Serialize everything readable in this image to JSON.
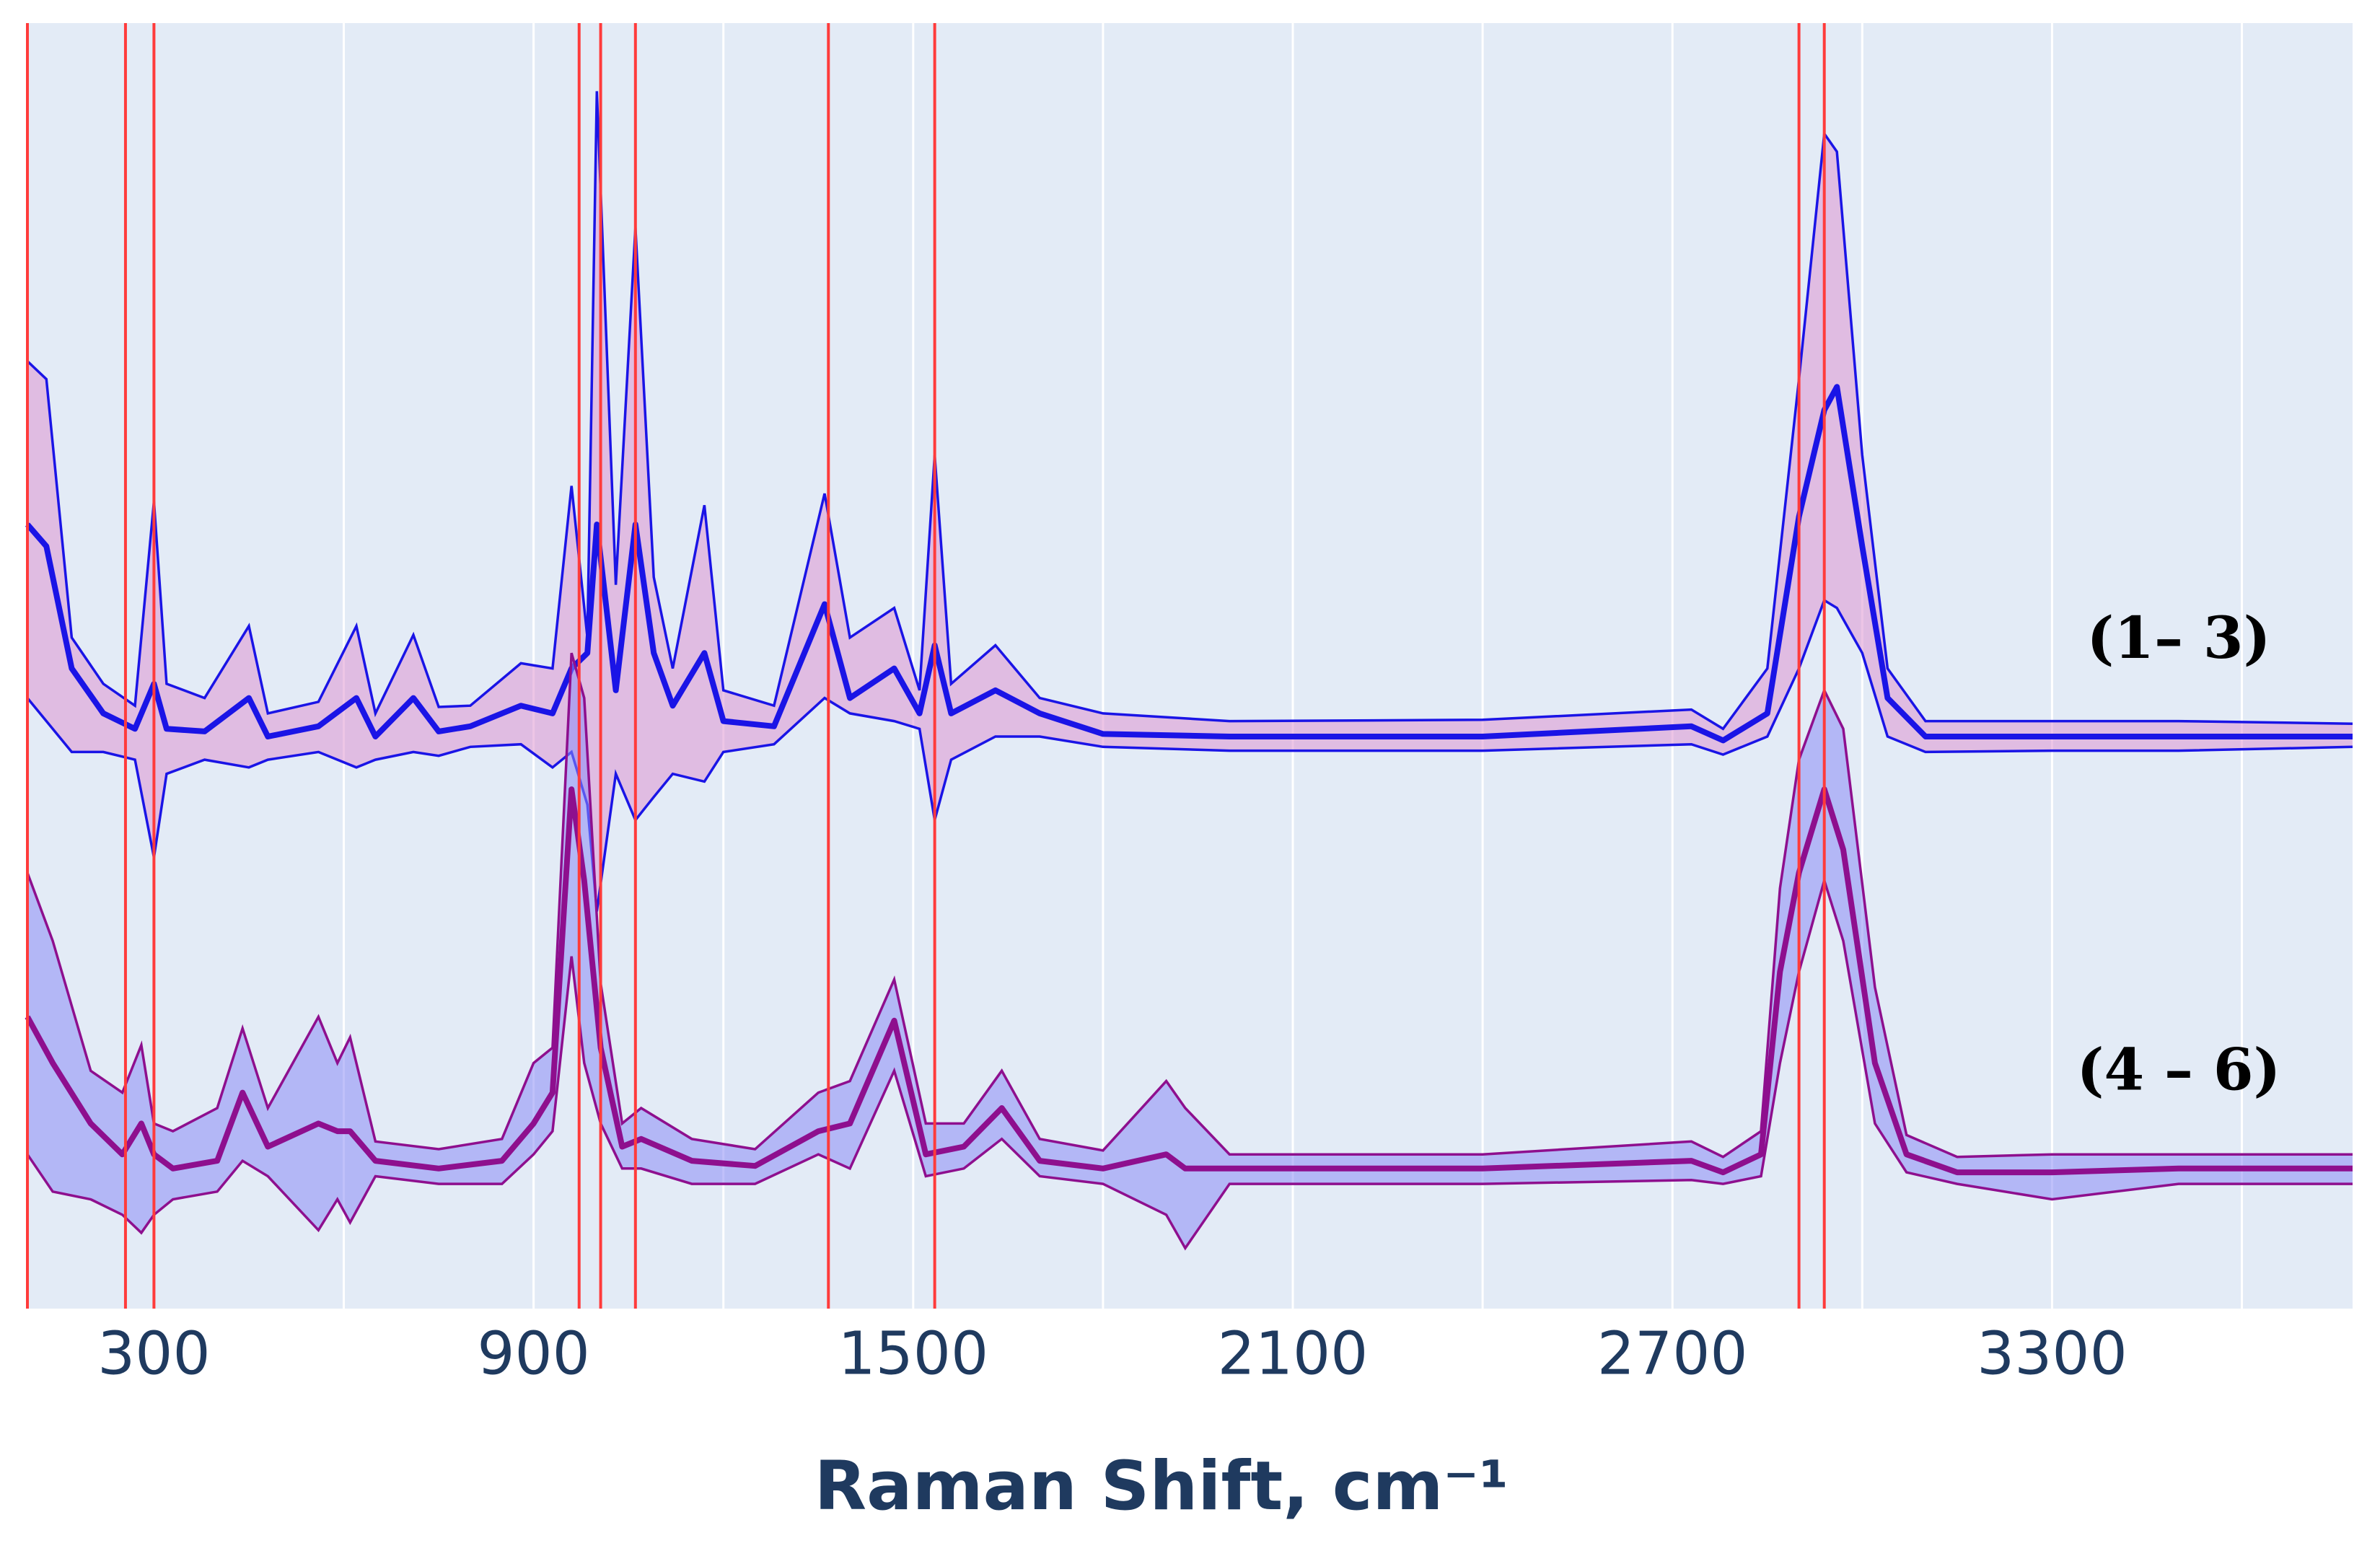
{
  "chart_data": {
    "type": "band-line",
    "xlabel": "Raman Shift, cm⁻¹",
    "xlim": [
      100,
      3775
    ],
    "ylim": [
      0,
      100
    ],
    "xticks": [
      300,
      900,
      1500,
      2100,
      2700,
      3300
    ],
    "x_minor_grid": [
      600,
      1200,
      1800,
      2400,
      3000,
      3600
    ],
    "grid": true,
    "vlines": [
      100,
      255,
      300,
      972,
      1006,
      1061,
      1366,
      1534,
      2900,
      2940
    ],
    "vline_color": "#ff3b3b",
    "series": [
      {
        "name": "(1– 3)",
        "color": "#1a14e6",
        "fill": "rgba(222,150,210,0.55)",
        "x": [
          100,
          130,
          170,
          220,
          270,
          300,
          320,
          380,
          450,
          480,
          560,
          620,
          650,
          710,
          750,
          800,
          880,
          930,
          960,
          985,
          1000,
          1030,
          1061,
          1090,
          1120,
          1170,
          1200,
          1280,
          1360,
          1400,
          1470,
          1510,
          1534,
          1560,
          1630,
          1700,
          1800,
          2000,
          2400,
          2730,
          2780,
          2850,
          2900,
          2940,
          2960,
          3000,
          3040,
          3100,
          3300,
          3500,
          3775
        ],
        "values": [
          61.0,
          59.3,
          49.8,
          46.3,
          45.1,
          48.6,
          45.1,
          44.9,
          47.5,
          44.5,
          45.3,
          47.5,
          44.5,
          47.5,
          44.9,
          45.3,
          46.9,
          46.3,
          49.8,
          51.0,
          61.0,
          48.1,
          61.0,
          51.0,
          46.9,
          51.0,
          45.7,
          45.3,
          54.8,
          47.5,
          49.8,
          46.3,
          51.6,
          46.3,
          48.1,
          46.3,
          44.7,
          44.5,
          44.5,
          45.3,
          44.2,
          46.3,
          61.6,
          69.9,
          71.7,
          59.3,
          47.5,
          44.5,
          44.5,
          44.5,
          44.5
        ],
        "upper": [
          73.7,
          72.3,
          52.2,
          48.6,
          46.9,
          62.8,
          48.6,
          47.5,
          53.1,
          46.3,
          47.2,
          53.1,
          46.3,
          52.4,
          46.8,
          46.9,
          50.2,
          49.8,
          64.0,
          52.2,
          94.7,
          56.3,
          84.1,
          56.9,
          49.8,
          62.5,
          48.1,
          46.9,
          63.4,
          52.2,
          54.5,
          48.1,
          66.4,
          48.6,
          51.6,
          47.5,
          46.3,
          45.7,
          45.8,
          46.6,
          45.1,
          49.8,
          72.3,
          91.4,
          90.0,
          66.4,
          49.8,
          45.7,
          45.7,
          45.7,
          45.5
        ],
        "lower": [
          47.5,
          45.7,
          43.3,
          43.3,
          42.7,
          35.1,
          41.6,
          42.7,
          42.1,
          42.7,
          43.3,
          42.1,
          42.7,
          43.3,
          43.0,
          43.7,
          43.9,
          42.1,
          43.3,
          39.2,
          30.9,
          41.6,
          38.0,
          39.8,
          41.6,
          41.0,
          43.3,
          43.9,
          47.5,
          46.3,
          45.7,
          45.1,
          38.0,
          42.7,
          44.5,
          44.5,
          43.7,
          43.4,
          43.4,
          43.9,
          43.1,
          44.5,
          49.8,
          55.1,
          54.5,
          51.0,
          44.5,
          43.3,
          43.4,
          43.4,
          43.7
        ]
      },
      {
        "name": "(4 – 6)",
        "color": "#8e0f8e",
        "fill": "rgba(140,140,245,0.55)",
        "x": [
          100,
          140,
          200,
          250,
          280,
          300,
          330,
          400,
          440,
          480,
          560,
          590,
          610,
          650,
          750,
          850,
          900,
          930,
          960,
          980,
          1006,
          1040,
          1070,
          1150,
          1250,
          1350,
          1400,
          1470,
          1520,
          1580,
          1640,
          1700,
          1800,
          1900,
          1930,
          2000,
          2400,
          2730,
          2780,
          2840,
          2870,
          2900,
          2940,
          2970,
          3020,
          3070,
          3150,
          3300,
          3500,
          3775
        ],
        "values": [
          22.7,
          19.1,
          14.4,
          12.0,
          14.4,
          12.0,
          10.9,
          11.5,
          16.8,
          12.6,
          14.4,
          13.8,
          13.8,
          11.5,
          10.9,
          11.5,
          14.4,
          16.8,
          40.4,
          33.3,
          20.3,
          12.6,
          13.2,
          11.5,
          11.1,
          13.8,
          14.4,
          22.4,
          12.0,
          12.6,
          15.6,
          11.5,
          10.9,
          12.0,
          10.9,
          10.9,
          10.9,
          11.5,
          10.6,
          12.0,
          26.2,
          33.9,
          40.4,
          35.7,
          19.1,
          12.0,
          10.6,
          10.6,
          10.9,
          10.9
        ],
        "upper": [
          33.9,
          28.6,
          18.5,
          16.8,
          20.5,
          14.4,
          13.8,
          15.6,
          21.8,
          15.6,
          22.7,
          19.1,
          21.1,
          13.0,
          12.4,
          13.2,
          19.1,
          20.3,
          51.0,
          47.5,
          25.3,
          14.4,
          15.6,
          13.2,
          12.4,
          16.8,
          17.7,
          25.6,
          14.4,
          14.4,
          18.5,
          13.2,
          12.3,
          17.7,
          15.6,
          12.0,
          12.0,
          13.0,
          11.8,
          13.8,
          32.7,
          42.7,
          48.1,
          45.1,
          25.0,
          13.5,
          11.8,
          12.0,
          12.0,
          12.0
        ],
        "lower": [
          12.0,
          9.1,
          8.5,
          7.3,
          5.9,
          7.3,
          8.5,
          9.1,
          11.5,
          10.3,
          6.1,
          8.5,
          6.7,
          10.3,
          9.7,
          9.7,
          12.0,
          13.8,
          27.4,
          19.1,
          14.4,
          10.9,
          10.9,
          9.7,
          9.7,
          12.0,
          10.9,
          18.5,
          10.3,
          10.9,
          13.2,
          10.3,
          9.7,
          7.3,
          4.7,
          9.7,
          9.7,
          10.0,
          9.7,
          10.3,
          19.1,
          26.2,
          33.3,
          28.6,
          14.4,
          10.6,
          9.7,
          8.5,
          9.7,
          9.7
        ]
      }
    ]
  }
}
